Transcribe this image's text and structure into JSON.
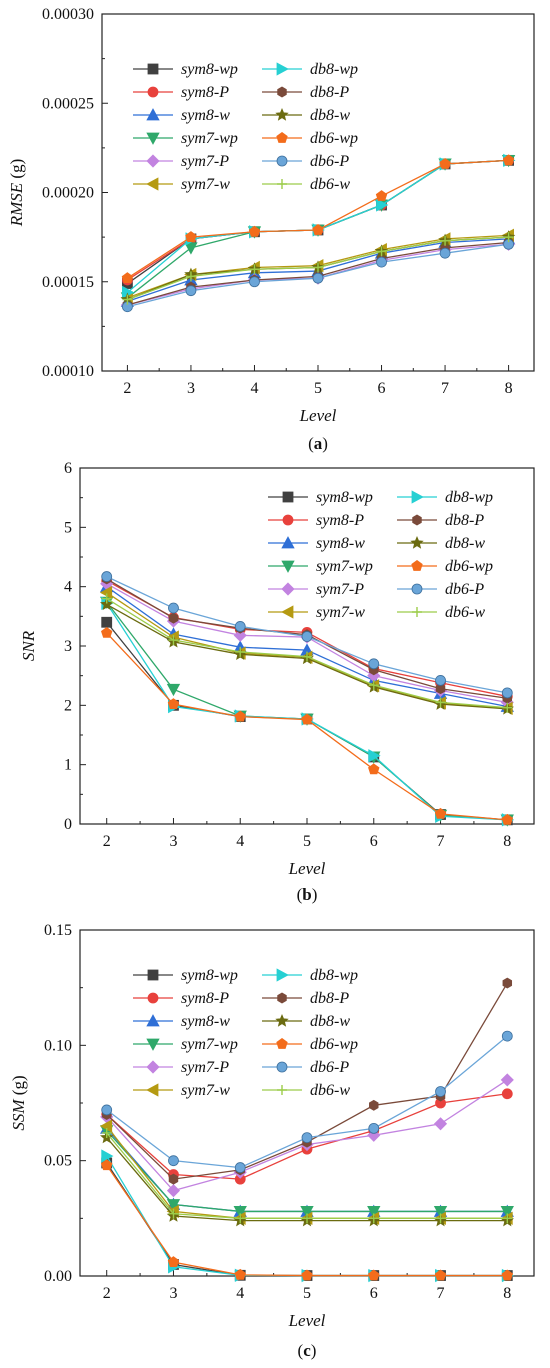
{
  "series_styles": [
    {
      "name": "sym8-wp",
      "color": "#404040",
      "marker": "square"
    },
    {
      "name": "sym8-P",
      "color": "#e8413c",
      "marker": "circle"
    },
    {
      "name": "sym8-w",
      "color": "#2f6fd6",
      "marker": "triangle-up"
    },
    {
      "name": "sym7-wp",
      "color": "#2fa86a",
      "marker": "triangle-down"
    },
    {
      "name": "sym7-P",
      "color": "#c283e0",
      "marker": "diamond"
    },
    {
      "name": "sym7-w",
      "color": "#b59a12",
      "marker": "triangle-left"
    },
    {
      "name": "db8-wp",
      "color": "#26d0d3",
      "marker": "triangle-right"
    },
    {
      "name": "db8-P",
      "color": "#7a4a3a",
      "marker": "hexagon"
    },
    {
      "name": "db8-w",
      "color": "#6b6b10",
      "marker": "star"
    },
    {
      "name": "db6-wp",
      "color": "#f36c1b",
      "marker": "pentagon"
    },
    {
      "name": "db6-P",
      "color": "#6aa5d8",
      "marker": "sphere"
    },
    {
      "name": "db6-w",
      "color": "#9ccc4a",
      "marker": "plus"
    }
  ],
  "chart_data": [
    {
      "type": "line",
      "caption_letter": "a",
      "xlabel": "Level",
      "ylabel_main": "RMSE",
      "ylabel_unit": " (g)",
      "x": [
        2,
        3,
        4,
        5,
        6,
        7,
        8
      ],
      "ylim": [
        0.0001,
        0.0003
      ],
      "yticks": [
        0.0001,
        0.00015,
        0.0002,
        0.00025,
        0.0003
      ],
      "ytick_labels": [
        "0.00010",
        "0.00015",
        "0.00020",
        "0.00025",
        "0.00030"
      ],
      "grid": false,
      "legend_position": "top-left",
      "series": [
        {
          "name": "sym8-wp",
          "values": [
            0.000149,
            0.000174,
            0.000178,
            0.000179,
            0.000193,
            0.000216,
            0.000218
          ]
        },
        {
          "name": "sym8-P",
          "values": [
            0.000151,
            0.000174,
            0.000178,
            0.000179,
            0.000193,
            0.000216,
            0.000218
          ]
        },
        {
          "name": "sym8-w",
          "values": [
            0.000139,
            0.000151,
            0.000155,
            0.000156,
            0.000166,
            0.000172,
            0.000174
          ]
        },
        {
          "name": "sym7-wp",
          "values": [
            0.000141,
            0.000169,
            0.000178,
            0.000179,
            0.000193,
            0.000216,
            0.000218
          ]
        },
        {
          "name": "sym7-P",
          "values": [
            0.000137,
            0.000146,
            0.000151,
            0.000152,
            0.000162,
            0.000168,
            0.000171
          ]
        },
        {
          "name": "sym7-w",
          "values": [
            0.000141,
            0.000154,
            0.000158,
            0.000159,
            0.000168,
            0.000174,
            0.000176
          ]
        },
        {
          "name": "db8-wp",
          "values": [
            0.000144,
            0.000174,
            0.000178,
            0.000179,
            0.000193,
            0.000216,
            0.000218
          ]
        },
        {
          "name": "db8-P",
          "values": [
            0.000137,
            0.000147,
            0.000151,
            0.000153,
            0.000163,
            0.000169,
            0.000172
          ]
        },
        {
          "name": "db8-w",
          "values": [
            0.00014,
            0.000154,
            0.000157,
            0.000158,
            0.000167,
            0.000173,
            0.000175
          ]
        },
        {
          "name": "db6-wp",
          "values": [
            0.000152,
            0.000175,
            0.000178,
            0.000179,
            0.000198,
            0.000216,
            0.000218
          ]
        },
        {
          "name": "db6-P",
          "values": [
            0.000136,
            0.000145,
            0.00015,
            0.000152,
            0.000161,
            0.000166,
            0.000171
          ]
        },
        {
          "name": "db6-w",
          "values": [
            0.00014,
            0.000153,
            0.000157,
            0.000158,
            0.000167,
            0.000173,
            0.000175
          ]
        }
      ]
    },
    {
      "type": "line",
      "caption_letter": "b",
      "xlabel": "Level",
      "ylabel_main": "SNR",
      "ylabel_unit": "",
      "x": [
        2,
        3,
        4,
        5,
        6,
        7,
        8
      ],
      "ylim": [
        0,
        6
      ],
      "yticks": [
        0,
        1,
        2,
        3,
        4,
        5,
        6
      ],
      "ytick_labels": [
        "0",
        "1",
        "2",
        "3",
        "4",
        "5",
        "6"
      ],
      "grid": false,
      "legend_position": "top-right",
      "series": [
        {
          "name": "sym8-wp",
          "values": [
            3.4,
            2.0,
            1.81,
            1.77,
            1.13,
            0.16,
            0.07
          ]
        },
        {
          "name": "sym8-P",
          "values": [
            4.1,
            3.48,
            3.28,
            3.23,
            2.62,
            2.38,
            2.15
          ]
        },
        {
          "name": "sym8-w",
          "values": [
            4.0,
            3.2,
            2.98,
            2.93,
            2.42,
            2.2,
            1.98
          ]
        },
        {
          "name": "sym7-wp",
          "values": [
            3.74,
            2.27,
            1.82,
            1.77,
            1.13,
            0.15,
            0.07
          ]
        },
        {
          "name": "sym7-P",
          "values": [
            4.05,
            3.42,
            3.18,
            3.15,
            2.5,
            2.25,
            2.05
          ]
        },
        {
          "name": "sym7-w",
          "values": [
            3.9,
            3.15,
            2.88,
            2.81,
            2.33,
            2.04,
            1.95
          ]
        },
        {
          "name": "db8-wp",
          "values": [
            3.72,
            1.98,
            1.82,
            1.77,
            1.15,
            0.13,
            0.07
          ]
        },
        {
          "name": "db8-P",
          "values": [
            4.13,
            3.47,
            3.3,
            3.19,
            2.6,
            2.28,
            2.12
          ]
        },
        {
          "name": "db8-w",
          "values": [
            3.7,
            3.07,
            2.86,
            2.79,
            2.31,
            2.02,
            1.94
          ]
        },
        {
          "name": "db6-wp",
          "values": [
            3.22,
            2.02,
            1.81,
            1.76,
            0.92,
            0.17,
            0.07
          ]
        },
        {
          "name": "db6-P",
          "values": [
            4.17,
            3.64,
            3.33,
            3.16,
            2.7,
            2.42,
            2.21
          ]
        },
        {
          "name": "db6-w",
          "values": [
            3.8,
            3.1,
            2.9,
            2.82,
            2.34,
            2.05,
            1.96
          ]
        }
      ]
    },
    {
      "type": "line",
      "caption_letter": "c",
      "xlabel": "Level",
      "ylabel_main": "SSM",
      "ylabel_unit": " (g)",
      "x": [
        2,
        3,
        4,
        5,
        6,
        7,
        8
      ],
      "ylim": [
        0,
        0.15
      ],
      "yticks": [
        0,
        0.05,
        0.1,
        0.15
      ],
      "ytick_labels": [
        "0.00",
        "0.05",
        "0.10",
        "0.15"
      ],
      "grid": false,
      "legend_position": "top-left",
      "series": [
        {
          "name": "sym8-wp",
          "values": [
            0.049,
            0.005,
            0.0003,
            0.0002,
            0.0002,
            0.0002,
            0.0002
          ]
        },
        {
          "name": "sym8-P",
          "values": [
            0.07,
            0.044,
            0.042,
            0.055,
            0.063,
            0.075,
            0.079
          ]
        },
        {
          "name": "sym8-w",
          "values": [
            0.064,
            0.031,
            0.028,
            0.028,
            0.028,
            0.028,
            0.028
          ]
        },
        {
          "name": "sym7-wp",
          "values": [
            0.063,
            0.031,
            0.028,
            0.028,
            0.028,
            0.028,
            0.028
          ]
        },
        {
          "name": "sym7-P",
          "values": [
            0.069,
            0.037,
            0.045,
            0.057,
            0.061,
            0.066,
            0.085
          ]
        },
        {
          "name": "sym7-w",
          "values": [
            0.065,
            0.028,
            0.025,
            0.025,
            0.025,
            0.025,
            0.025
          ]
        },
        {
          "name": "db8-wp",
          "values": [
            0.052,
            0.004,
            0.0003,
            0.0002,
            0.0002,
            0.0002,
            0.0002
          ]
        },
        {
          "name": "db8-P",
          "values": [
            0.07,
            0.042,
            0.046,
            0.058,
            0.074,
            0.078,
            0.127
          ]
        },
        {
          "name": "db8-w",
          "values": [
            0.06,
            0.026,
            0.024,
            0.024,
            0.024,
            0.024,
            0.024
          ]
        },
        {
          "name": "db6-wp",
          "values": [
            0.048,
            0.006,
            0.0005,
            0.0002,
            0.0002,
            0.0002,
            0.0002
          ]
        },
        {
          "name": "db6-P",
          "values": [
            0.072,
            0.05,
            0.047,
            0.06,
            0.064,
            0.08,
            0.104
          ]
        },
        {
          "name": "db6-w",
          "values": [
            0.062,
            0.027,
            0.025,
            0.025,
            0.025,
            0.025,
            0.025
          ]
        }
      ]
    }
  ]
}
